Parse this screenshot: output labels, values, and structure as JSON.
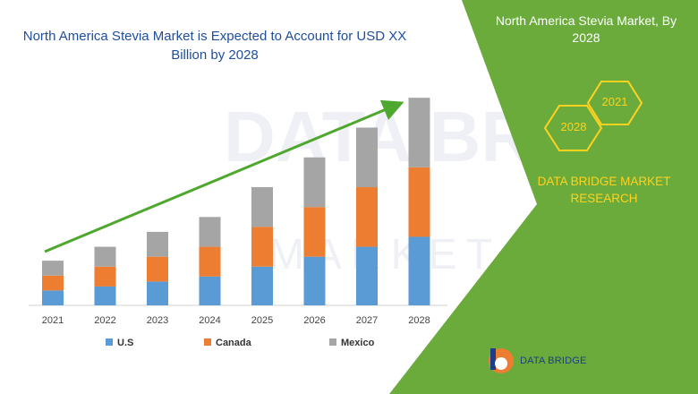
{
  "chart_data": {
    "type": "bar",
    "stacked": true,
    "title": "North America Stevia Market is Expected to Account for USD XX Billion by 2028",
    "categories": [
      "2021",
      "2022",
      "2023",
      "2024",
      "2025",
      "2026",
      "2027",
      "2028"
    ],
    "series": [
      {
        "name": "U.S",
        "color": "#5b9bd5",
        "values": [
          1.5,
          1.9,
          2.4,
          2.9,
          3.9,
          4.9,
          5.9,
          6.9
        ]
      },
      {
        "name": "Canada",
        "color": "#ed7d31",
        "values": [
          1.5,
          2.0,
          2.5,
          3.0,
          4.0,
          5.0,
          6.0,
          7.0
        ]
      },
      {
        "name": "Mexico",
        "color": "#a5a5a5",
        "values": [
          1.5,
          2.0,
          2.5,
          3.0,
          4.0,
          5.0,
          6.0,
          7.0
        ]
      }
    ],
    "ylim": [
      0,
      22
    ],
    "grid": false,
    "legend": "bottom",
    "trend_arrow_color": "#4ea72e"
  },
  "panel": {
    "title": "North America Stevia Market, By 2028",
    "hex_left": "2028",
    "hex_right": "2021",
    "brand": "DATA BRIDGE MARKET RESEARCH",
    "color": "#6aab3c",
    "hex_color": "#ffd21f"
  },
  "logo": {
    "text": "DATA BRIDGE"
  }
}
